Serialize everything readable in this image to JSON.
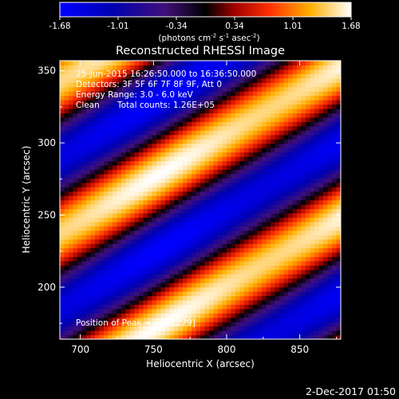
{
  "chart_data": {
    "type": "heatmap",
    "title": "Reconstructed RHESSI Image",
    "xlabel": "Heliocentric X (arcsec)",
    "ylabel": "Heliocentric Y (arcsec)",
    "xlim": [
      686,
      878
    ],
    "ylim": [
      164,
      357
    ],
    "x_ticks": [
      700,
      750,
      800,
      850
    ],
    "y_ticks": [
      200,
      250,
      300,
      350
    ],
    "colorbar": {
      "range": [
        -1.68,
        1.68
      ],
      "ticks": [
        "-1.68",
        "-1.01",
        "-0.34",
        "0.34",
        "1.01",
        "1.68"
      ],
      "label_main": "(photons cm",
      "label_exp1": "-2",
      "label_mid": " s",
      "label_exp2": "-1",
      "label_end": " asec",
      "label_exp3": "-2",
      "label_close": ")"
    },
    "annotations": {
      "time_range": "25-Jun-2015 16:26:50.000 to 16:36:50.000",
      "detectors": "Detectors: 3F 5F 6F 7F 8F 9F, Att 0",
      "energy_range": "Energy Range: 3.0 - 6.0 keV",
      "method": "Clean",
      "total_counts": "Total counts: 1.26E+05",
      "peak_position": "Position of Peak = [755,279]"
    },
    "peak": [
      755,
      279
    ],
    "date_stamp": "2-Dec-2017 01:50"
  }
}
